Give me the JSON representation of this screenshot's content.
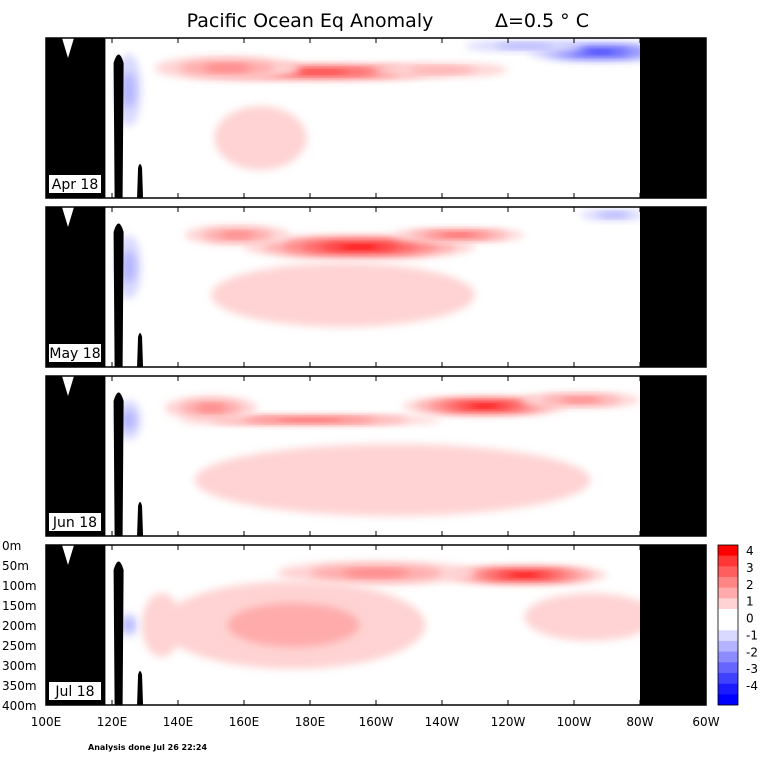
{
  "figure": {
    "title": "Pacific Ocean Eq Anomaly",
    "contour_interval": "Δ=0.5 ° C",
    "footer": "Analysis done Jul 26 22:24"
  },
  "chart_data": {
    "type": "heatmap",
    "title": "Pacific Ocean Eq Anomaly",
    "subtitle": "Δ=0.5 ° C",
    "xlabel": "",
    "ylabel": "",
    "x_ticks": [
      "100E",
      "120E",
      "140E",
      "160E",
      "180E",
      "160W",
      "140W",
      "120W",
      "100W",
      "80W",
      "60W"
    ],
    "x_range_deg_east": [
      100,
      300
    ],
    "y_ticks": [
      "0m",
      "50m",
      "100m",
      "150m",
      "200m",
      "250m",
      "300m",
      "350m",
      "400m"
    ],
    "y_range_m": [
      0,
      400
    ],
    "colorbar": {
      "labels": [
        "4",
        "3",
        "2",
        "1",
        "0",
        "-1",
        "-2",
        "-3",
        "-4"
      ],
      "colors": [
        "#ff0000",
        "#ff3636",
        "#ff5e5e",
        "#ff8585",
        "#ffabab",
        "#ffd3d3",
        "#ffffff",
        "#ffffff",
        "#d9d9ff",
        "#b3b3ff",
        "#8c8cff",
        "#6666ff",
        "#4040ff",
        "#1a1aff",
        "#0000ff"
      ]
    },
    "panels": [
      {
        "label": "Apr 18",
        "features": [
          {
            "lon": 183,
            "depth": 85,
            "lon_halfwidth": 40,
            "depth_halfwidth": 22,
            "anomaly": 2.5
          },
          {
            "lon": 155,
            "depth": 75,
            "lon_halfwidth": 22,
            "depth_halfwidth": 30,
            "anomaly": 1.5
          },
          {
            "lon": 220,
            "depth": 80,
            "lon_halfwidth": 20,
            "depth_halfwidth": 18,
            "anomaly": 1.0
          },
          {
            "lon": 165,
            "depth": 250,
            "lon_halfwidth": 14,
            "depth_halfwidth": 80,
            "anomaly": 0.7
          },
          {
            "lon": 268,
            "depth": 35,
            "lon_halfwidth": 22,
            "depth_halfwidth": 25,
            "anomaly": -2.5
          },
          {
            "lon": 245,
            "depth": 20,
            "lon_halfwidth": 18,
            "depth_halfwidth": 15,
            "anomaly": -1.0
          },
          {
            "lon": 125,
            "depth": 130,
            "lon_halfwidth": 4,
            "depth_halfwidth": 90,
            "anomaly": -1.0
          }
        ]
      },
      {
        "label": "May 18",
        "features": [
          {
            "lon": 195,
            "depth": 100,
            "lon_halfwidth": 35,
            "depth_halfwidth": 30,
            "anomaly": 3.0
          },
          {
            "lon": 225,
            "depth": 70,
            "lon_halfwidth": 20,
            "depth_halfwidth": 18,
            "anomaly": 2.0
          },
          {
            "lon": 158,
            "depth": 70,
            "lon_halfwidth": 16,
            "depth_halfwidth": 25,
            "anomaly": 1.5
          },
          {
            "lon": 190,
            "depth": 220,
            "lon_halfwidth": 40,
            "depth_halfwidth": 80,
            "anomaly": 0.7
          },
          {
            "lon": 272,
            "depth": 20,
            "lon_halfwidth": 10,
            "depth_halfwidth": 15,
            "anomaly": -1.0
          },
          {
            "lon": 125,
            "depth": 150,
            "lon_halfwidth": 4,
            "depth_halfwidth": 80,
            "anomaly": -1.0
          }
        ]
      },
      {
        "label": "Jun 18",
        "features": [
          {
            "lon": 233,
            "depth": 75,
            "lon_halfwidth": 25,
            "depth_halfwidth": 25,
            "anomaly": 3.0
          },
          {
            "lon": 262,
            "depth": 60,
            "lon_halfwidth": 18,
            "depth_halfwidth": 20,
            "anomaly": 1.5
          },
          {
            "lon": 180,
            "depth": 110,
            "lon_halfwidth": 40,
            "depth_halfwidth": 15,
            "anomaly": 2.0
          },
          {
            "lon": 150,
            "depth": 80,
            "lon_halfwidth": 14,
            "depth_halfwidth": 30,
            "anomaly": 1.5
          },
          {
            "lon": 205,
            "depth": 260,
            "lon_halfwidth": 60,
            "depth_halfwidth": 90,
            "anomaly": 0.7
          },
          {
            "lon": 125,
            "depth": 110,
            "lon_halfwidth": 4,
            "depth_halfwidth": 50,
            "anomaly": -1.0
          }
        ]
      },
      {
        "label": "Jul 18",
        "features": [
          {
            "lon": 245,
            "depth": 75,
            "lon_halfwidth": 25,
            "depth_halfwidth": 25,
            "anomaly": 3.0
          },
          {
            "lon": 200,
            "depth": 70,
            "lon_halfwidth": 30,
            "depth_halfwidth": 30,
            "anomaly": 1.5
          },
          {
            "lon": 175,
            "depth": 200,
            "lon_halfwidth": 40,
            "depth_halfwidth": 110,
            "anomaly": 1.0
          },
          {
            "lon": 265,
            "depth": 180,
            "lon_halfwidth": 20,
            "depth_halfwidth": 60,
            "anomaly": 0.7
          },
          {
            "lon": 135,
            "depth": 200,
            "lon_halfwidth": 6,
            "depth_halfwidth": 80,
            "anomaly": 0.7
          },
          {
            "lon": 125,
            "depth": 200,
            "lon_halfwidth": 3,
            "depth_halfwidth": 30,
            "anomaly": -1.0
          }
        ]
      }
    ]
  }
}
